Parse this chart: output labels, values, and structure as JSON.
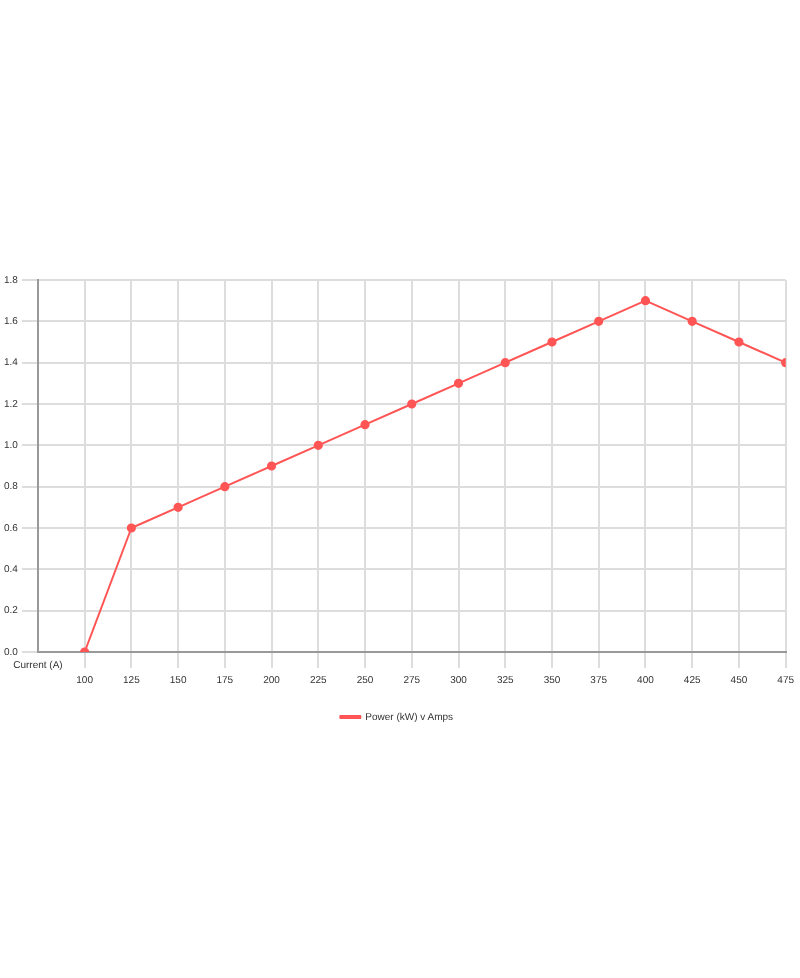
{
  "chart_data": {
    "type": "line",
    "xlabel": "Current (A)",
    "x": [
      100,
      125,
      150,
      175,
      200,
      225,
      250,
      275,
      300,
      325,
      350,
      375,
      400,
      425,
      450,
      475
    ],
    "series": [
      {
        "name": "Power (kW) v Amps",
        "color": "#ff5555",
        "values": [
          0,
          0.6,
          0.7,
          0.8,
          0.9,
          1.0,
          1.1,
          1.2,
          1.3,
          1.4,
          1.5,
          1.6,
          1.7,
          1.6,
          1.5,
          1.4
        ]
      }
    ],
    "xlim": [
      75,
      475
    ],
    "xticks": [
      100,
      125,
      150,
      175,
      200,
      225,
      250,
      275,
      300,
      325,
      350,
      375,
      400,
      425,
      450,
      475
    ],
    "ylim": [
      0,
      1.8
    ],
    "yticks": [
      {
        "value": 0,
        "label": "0.0"
      },
      {
        "value": 0.2,
        "label": "0.2"
      },
      {
        "value": 0.4,
        "label": "0.4"
      },
      {
        "value": 0.6,
        "label": "0.6"
      },
      {
        "value": 0.8,
        "label": "0.8"
      },
      {
        "value": 1,
        "label": "1.0"
      },
      {
        "value": 1.2,
        "label": "1.2"
      },
      {
        "value": 1.4,
        "label": "1.4"
      },
      {
        "value": 1.6,
        "label": "1.6"
      },
      {
        "value": 1.8,
        "label": "1.8"
      }
    ],
    "grid": true,
    "legend": "bottom",
    "marker": "circle",
    "line_style": "solid"
  }
}
